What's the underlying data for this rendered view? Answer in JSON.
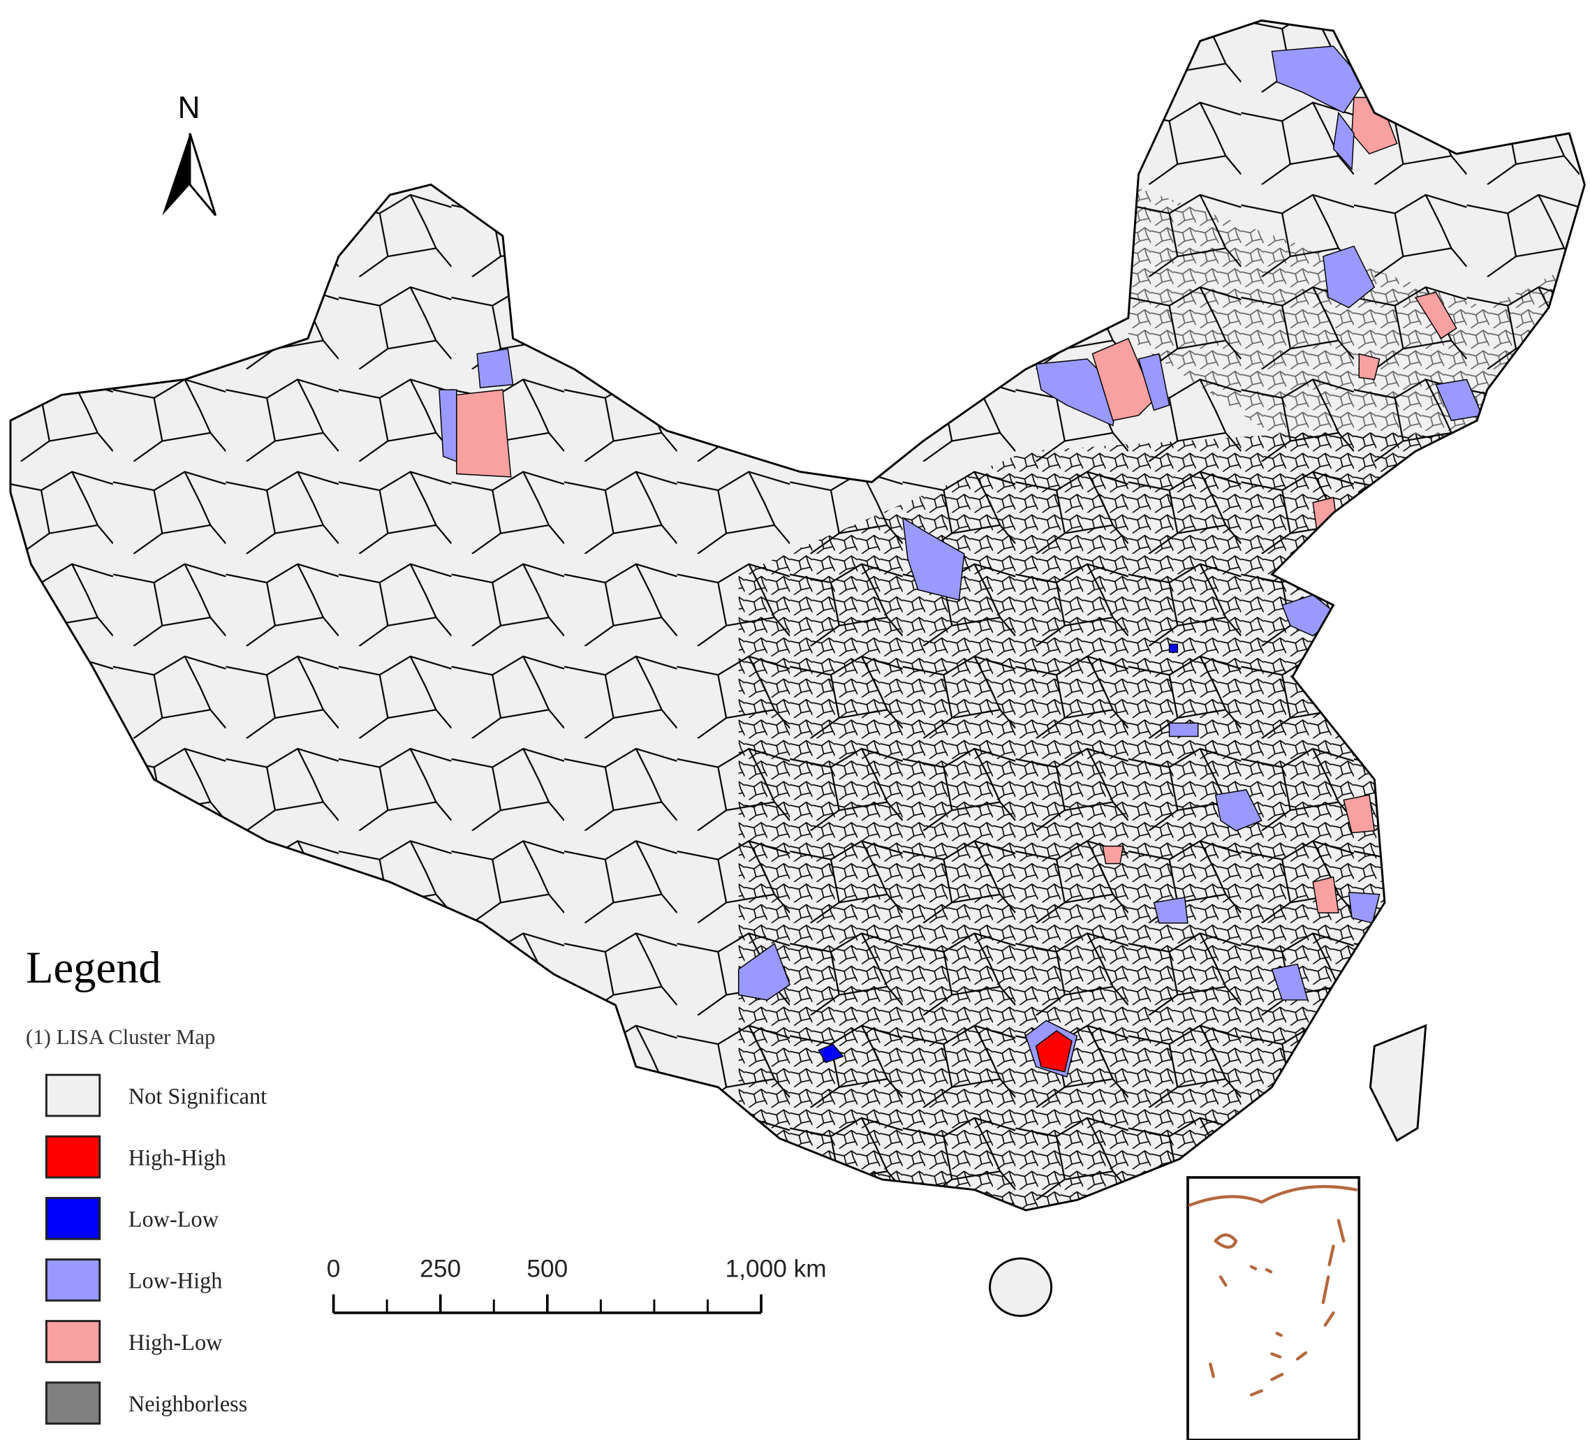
{
  "north_arrow": {
    "label": "N"
  },
  "legend": {
    "title": "Legend",
    "subtitle": "(1) LISA Cluster Map",
    "items": [
      {
        "name": "Not Significant",
        "color": "#f0f0f0"
      },
      {
        "name": "High-High",
        "color": "#ff0000"
      },
      {
        "name": "Low-Low",
        "color": "#0000ff"
      },
      {
        "name": "Low-High",
        "color": "#9999ff"
      },
      {
        "name": "High-Low",
        "color": "#f9a0a0"
      },
      {
        "name": "Neighborless",
        "color": "#808080"
      }
    ]
  },
  "scale_bar": {
    "ticks": [
      0,
      250,
      500,
      {
        "value": 1000,
        "label": "1,000 km"
      }
    ]
  }
}
